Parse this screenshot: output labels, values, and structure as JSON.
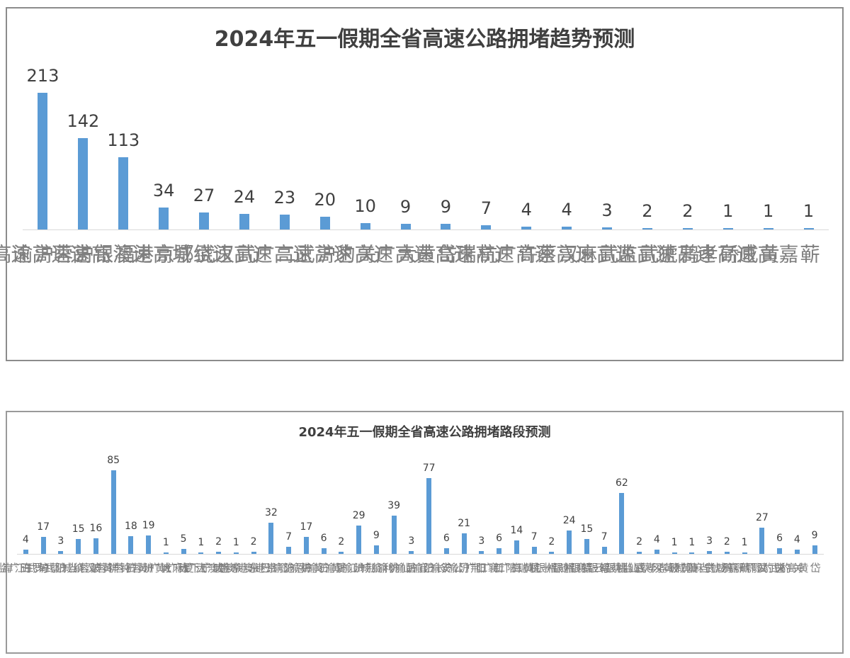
{
  "chart_data": [
    {
      "type": "bar",
      "title": "2024年五一假期全省高速公路拥堵趋势预测",
      "xlabel": "",
      "ylabel": "",
      "ylim": [
        0,
        213
      ],
      "grid": false,
      "legend": null,
      "data_labels": true,
      "categories": [
        "沪渝高速",
        "沪蓉高速",
        "福银高速",
        "京港澳高速",
        "武鄂高速",
        "武汉绕城",
        "二广高速",
        "沪武高速",
        "关豹高速",
        "大广高速",
        "岱黄高速",
        "杭瑞高速",
        "许广高速",
        "汉蔡高速",
        "武麻高速",
        "武监高速",
        "鸦猇高速",
        "硚孝高速",
        "黄咸高速",
        "蕲嘉高速"
      ],
      "values": [
        213,
        142,
        113,
        34,
        27,
        24,
        23,
        20,
        10,
        9,
        9,
        7,
        4,
        4,
        3,
        2,
        2,
        1,
        1,
        1
      ]
    },
    {
      "type": "bar",
      "title": "2024年五一假期全省高速公路拥堵路段预测",
      "xlabel": "",
      "ylabel": "",
      "ylim": [
        0,
        85
      ],
      "grid": false,
      "legend": null,
      "data_labels": true,
      "categories": [
        "许广监利",
        "沪武江岸",
        "沪武罗田",
        "绕城蔡甸",
        "沪蓉当阳",
        "沪蓉汉川",
        "沪蓉黄陂",
        "沪蓉钟祥",
        "大广黄石",
        "大广黄州",
        "大广麻城",
        "大广下陆",
        "京港澳江夏",
        "京港澳咸宁",
        "京港澳孝感",
        "沪渝巴东",
        "沪渝鄂州",
        "沪渝恩施",
        "沪渝黄梅",
        "沪渝黄石",
        "绕城江夏",
        "沪渝荆州",
        "沪渝利川",
        "沪渝仙桃",
        "沪渝宜昌",
        "沪渝长阳",
        "二广公安",
        "二广荆门",
        "二广襄阳",
        "杭瑞阳新",
        "福银黄梅",
        "福银十堰",
        "福银随州",
        "福银襄州",
        "福银云梦",
        "武监蔡甸",
        "汉蔡仙桃",
        "硚孝孝感",
        "黄咸黄冈",
        "武麻黄陂",
        "鸦猇当阳",
        "蕲嘉咸宁",
        "武鄂鄂州",
        "关豹鄂州",
        "关豹武汉",
        "岱黄高速"
      ],
      "values": [
        4,
        17,
        3,
        15,
        16,
        85,
        18,
        19,
        1,
        5,
        1,
        2,
        1,
        2,
        32,
        7,
        17,
        6,
        2,
        29,
        9,
        39,
        3,
        77,
        6,
        21,
        3,
        6,
        14,
        7,
        2,
        24,
        15,
        7,
        62,
        2,
        4,
        1,
        1,
        3,
        2,
        1,
        27,
        6,
        4,
        9
      ]
    }
  ],
  "colors": {
    "bar": "#5b9bd5",
    "label": "#7f7f7f",
    "value": "#404040",
    "border": "#8c8c8c"
  }
}
